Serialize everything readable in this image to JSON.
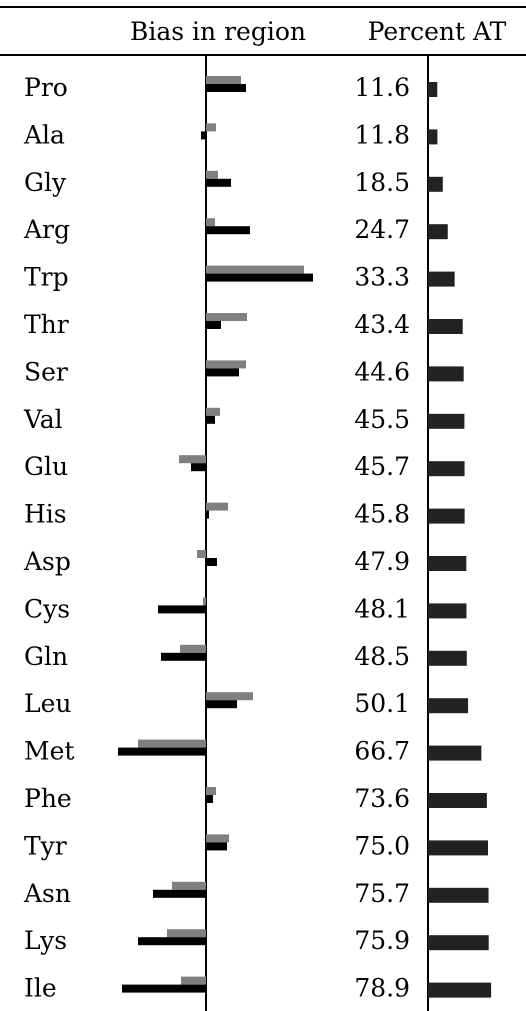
{
  "header": {
    "bias_label": "Bias in region",
    "percent_label": "Percent AT"
  },
  "chart_data": {
    "type": "bar",
    "categories": [
      "Pro",
      "Ala",
      "Gly",
      "Arg",
      "Trp",
      "Thr",
      "Ser",
      "Val",
      "Glu",
      "His",
      "Asp",
      "Cys",
      "Gln",
      "Leu",
      "Met",
      "Phe",
      "Tyr",
      "Asn",
      "Lys",
      "Ile"
    ],
    "series": [
      {
        "color": "#808080",
        "values": [
          35,
          10,
          12,
          9,
          98,
          41,
          40,
          14,
          -27,
          22,
          -9,
          -3,
          -26,
          47,
          -68,
          10,
          23,
          -34,
          -39,
          -25
        ]
      },
      {
        "color": "#000000",
        "values": [
          40,
          -5,
          25,
          44,
          107,
          15,
          33,
          9,
          -15,
          3,
          11,
          -48,
          -45,
          31,
          -88,
          7,
          21,
          -53,
          -68,
          -84
        ]
      }
    ],
    "percent_at": {
      "values": [
        11.6,
        11.8,
        18.5,
        24.7,
        33.3,
        43.4,
        44.6,
        45.5,
        45.7,
        45.8,
        47.9,
        48.1,
        48.5,
        50.1,
        66.7,
        73.6,
        75.0,
        75.7,
        75.9,
        78.9
      ],
      "labels": [
        "11.6",
        "11.8",
        "18.5",
        "24.7",
        "33.3",
        "43.4",
        "44.6",
        "45.5",
        "45.7",
        "45.8",
        "47.9",
        "48.1",
        "48.5",
        "50.1",
        "66.7",
        "73.6",
        "75.0",
        "75.7",
        "75.9",
        "78.9"
      ],
      "color": "#222222"
    }
  }
}
